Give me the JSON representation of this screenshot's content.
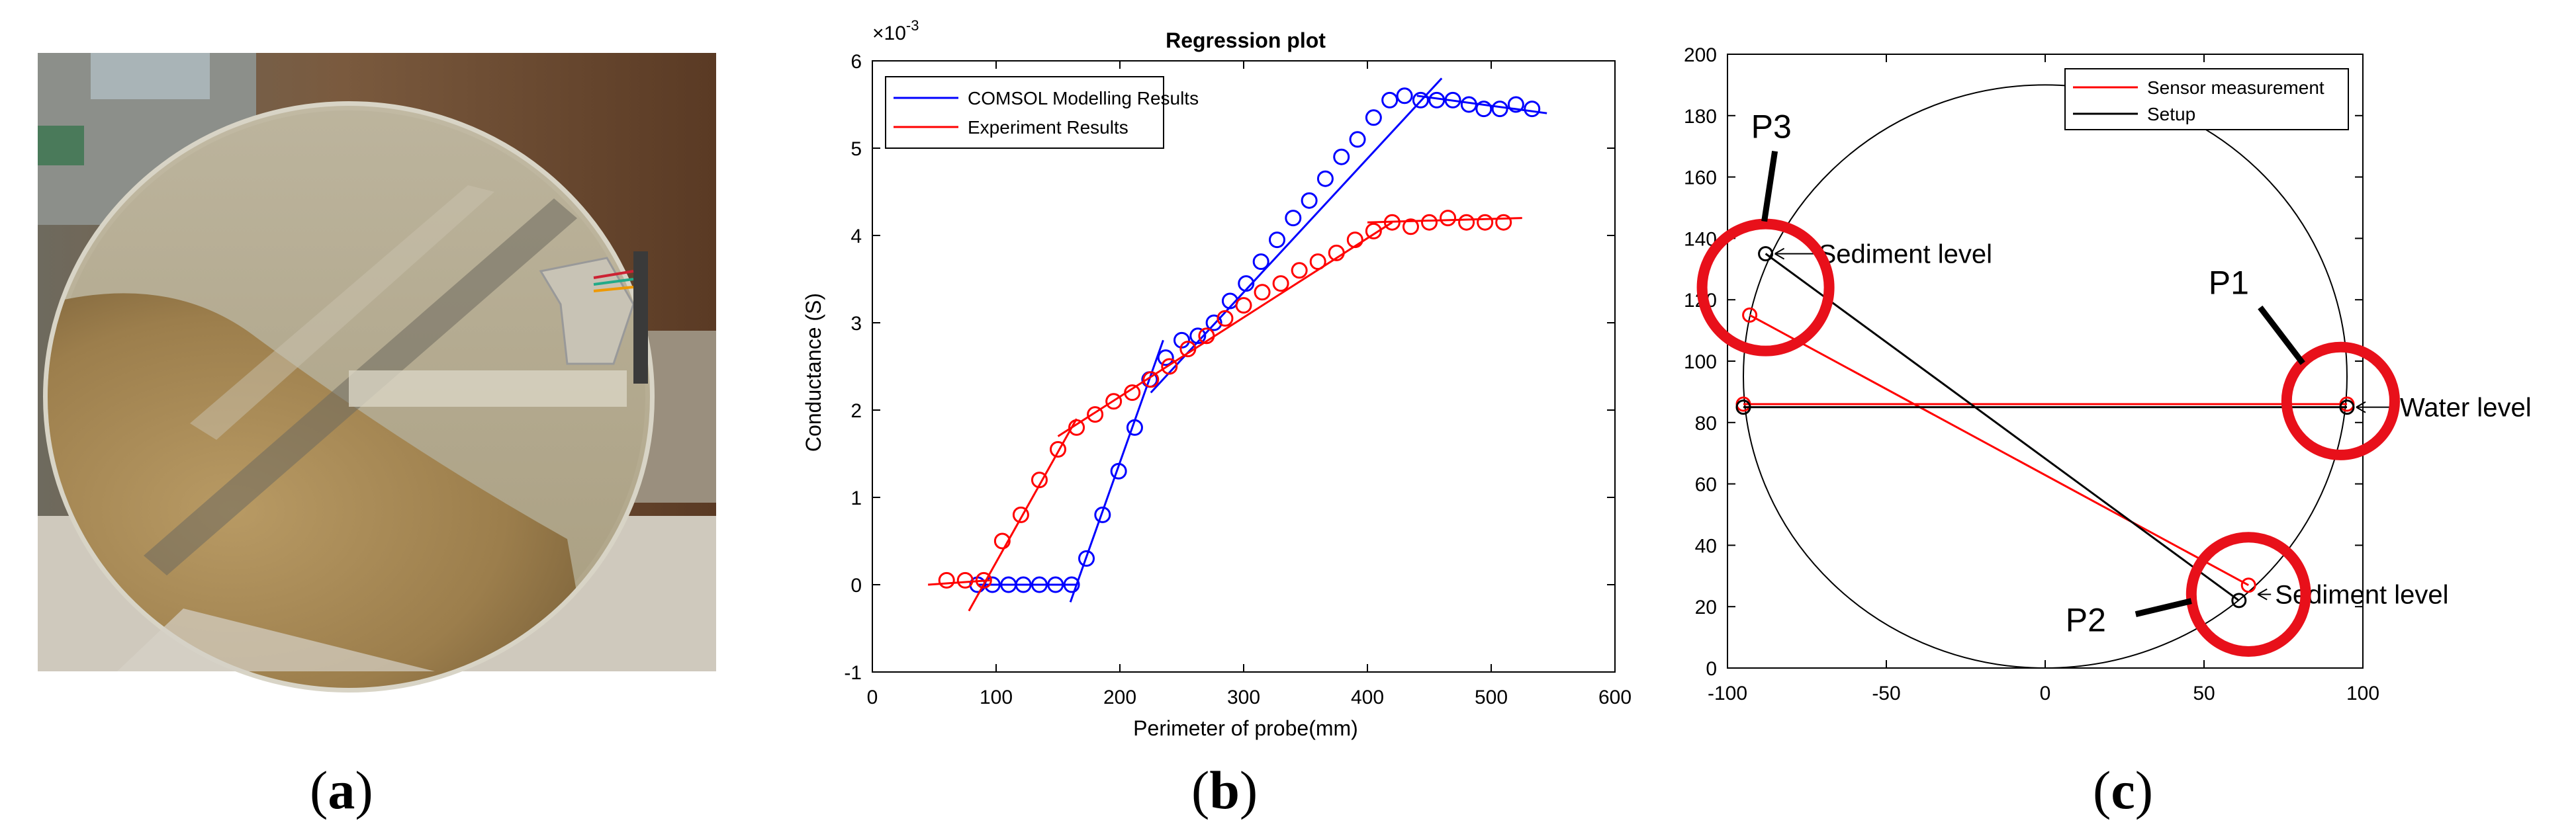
{
  "panels": [
    {
      "label_open": "(",
      "label_letter": "a",
      "label_close": ")"
    },
    {
      "label_open": "(",
      "label_letter": "b",
      "label_close": ")"
    },
    {
      "label_open": "(",
      "label_letter": "c",
      "label_close": ")"
    }
  ],
  "chart_data": [
    {
      "type": "line",
      "title": "Regression plot",
      "xlabel": "Perimeter of probe(mm)",
      "ylabel": "Conductance (S)",
      "y_exponent_label": "×10",
      "y_exponent_power": "-3",
      "xlim": [
        0,
        600
      ],
      "ylim": [
        -1,
        6
      ],
      "xticks": [
        "0",
        "100",
        "200",
        "300",
        "400",
        "500",
        "600"
      ],
      "yticks": [
        "-1",
        "0",
        "1",
        "2",
        "3",
        "4",
        "5",
        "6"
      ],
      "grid": false,
      "legend_position": "top-left",
      "series": [
        {
          "name": "COMSOL Modelling Results",
          "color": "#0000ff",
          "marker": "circle",
          "x": [
            85,
            97,
            110,
            122,
            135,
            148,
            161,
            173,
            186,
            199,
            212,
            224,
            237,
            250,
            263,
            276,
            289,
            302,
            314,
            327,
            340,
            353,
            366,
            379,
            392,
            405,
            418,
            430,
            443,
            456,
            469,
            482,
            494,
            507,
            520,
            533
          ],
          "y": [
            0,
            0,
            0,
            0,
            0,
            0,
            0,
            0.3,
            0.8,
            1.3,
            1.8,
            2.35,
            2.6,
            2.8,
            2.85,
            3.0,
            3.25,
            3.45,
            3.7,
            3.95,
            4.2,
            4.4,
            4.65,
            4.9,
            5.1,
            5.35,
            5.55,
            5.6,
            5.55,
            5.55,
            5.55,
            5.5,
            5.45,
            5.45,
            5.5,
            5.45
          ],
          "fit_lines": [
            {
              "x": [
                85,
                165
              ],
              "y": [
                0,
                0
              ]
            },
            {
              "x": [
                160,
                235
              ],
              "y": [
                -0.2,
                2.8
              ]
            },
            {
              "x": [
                225,
                460
              ],
              "y": [
                2.2,
                5.8
              ]
            },
            {
              "x": [
                440,
                545
              ],
              "y": [
                5.6,
                5.4
              ]
            }
          ]
        },
        {
          "name": "Experiment Results",
          "color": "#ff0000",
          "marker": "circle",
          "x": [
            60,
            75,
            90,
            105,
            120,
            135,
            150,
            165,
            180,
            195,
            210,
            225,
            240,
            255,
            270,
            285,
            300,
            315,
            330,
            345,
            360,
            375,
            390,
            405,
            420,
            435,
            450,
            465,
            480,
            495,
            510
          ],
          "y": [
            0.05,
            0.05,
            0.05,
            0.5,
            0.8,
            1.2,
            1.55,
            1.8,
            1.95,
            2.1,
            2.2,
            2.35,
            2.5,
            2.7,
            2.85,
            3.05,
            3.2,
            3.35,
            3.45,
            3.6,
            3.7,
            3.8,
            3.95,
            4.05,
            4.15,
            4.1,
            4.15,
            4.2,
            4.15,
            4.15,
            4.15
          ],
          "fit_lines": [
            {
              "x": [
                45,
                95
              ],
              "y": [
                0,
                0.05
              ]
            },
            {
              "x": [
                78,
                165
              ],
              "y": [
                -0.3,
                1.9
              ]
            },
            {
              "x": [
                150,
                420
              ],
              "y": [
                1.7,
                4.15
              ]
            },
            {
              "x": [
                400,
                525
              ],
              "y": [
                4.15,
                4.2
              ]
            }
          ]
        }
      ]
    },
    {
      "type": "line",
      "xlim": [
        -100,
        100
      ],
      "ylim": [
        0,
        200
      ],
      "xticks": [
        "-100",
        "-50",
        "0",
        "50",
        "100"
      ],
      "yticks": [
        "0",
        "20",
        "40",
        "60",
        "80",
        "100",
        "120",
        "140",
        "160",
        "180",
        "200"
      ],
      "grid": false,
      "legend_position": "top-right",
      "circle": {
        "center_x": 0,
        "center_y": 95,
        "radius": 95,
        "color": "#000000"
      },
      "series": [
        {
          "name": "Sensor measurement",
          "color": "#ff0000",
          "x": [
            -95,
            95,
            null,
            -93,
            64
          ],
          "y": [
            86,
            86,
            null,
            115,
            27
          ],
          "markers": [
            [
              -95,
              86
            ],
            [
              95,
              86
            ],
            [
              -93,
              115
            ],
            [
              64,
              27
            ]
          ]
        },
        {
          "name": "Setup",
          "color": "#000000",
          "x": [
            -95,
            95,
            null,
            -88,
            61
          ],
          "y": [
            85,
            85,
            null,
            135,
            22
          ],
          "markers": [
            [
              -95,
              85
            ],
            [
              95,
              85
            ],
            [
              -88,
              135
            ],
            [
              61,
              22
            ]
          ]
        }
      ],
      "annotations": [
        {
          "text": "Sediment level",
          "arrow_to": [
            -88,
            135
          ]
        },
        {
          "text": "Water level",
          "arrow_to": [
            95,
            85
          ]
        },
        {
          "text": "Sediment level",
          "arrow_to": [
            64,
            24
          ]
        }
      ],
      "highlights": [
        {
          "label": "P3",
          "center": [
            -88,
            124
          ],
          "radius": 20
        },
        {
          "label": "P1",
          "center": [
            93,
            87
          ],
          "radius": 17
        },
        {
          "label": "P2",
          "center": [
            64,
            24
          ],
          "radius": 18
        }
      ],
      "highlight_color": "#e8101a"
    }
  ]
}
